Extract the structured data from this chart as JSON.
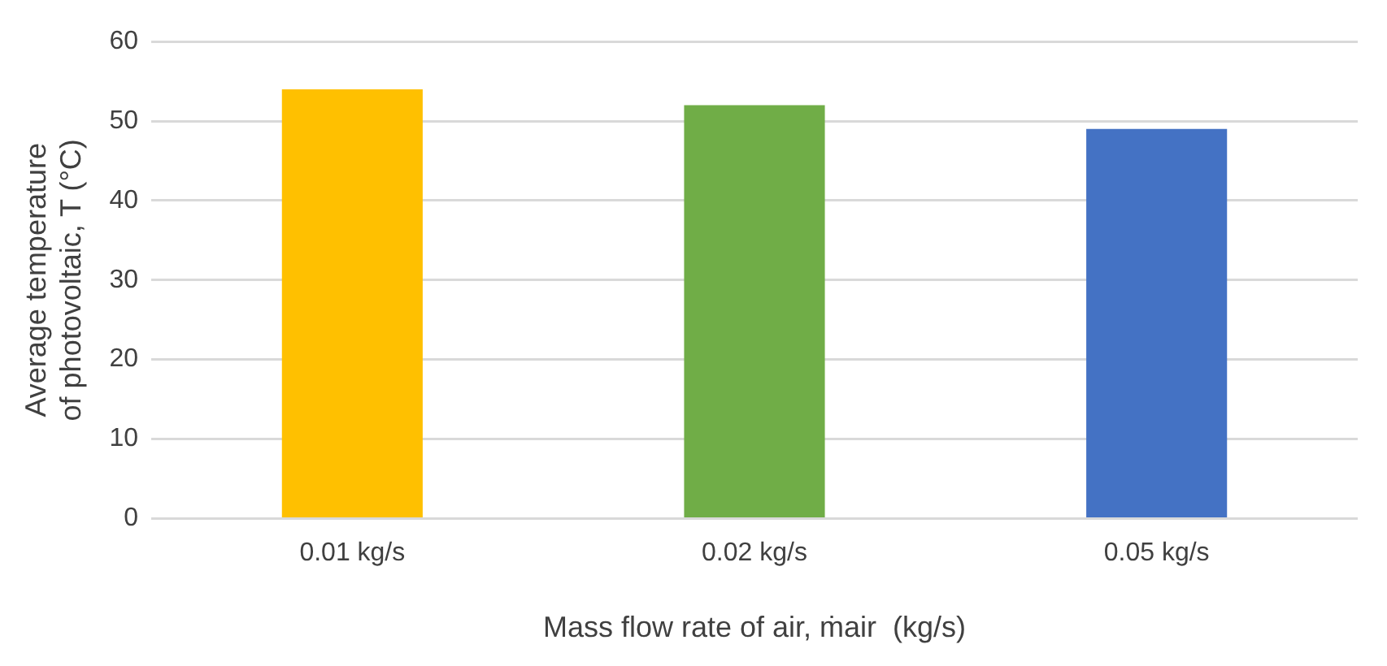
{
  "chart_data": {
    "type": "bar",
    "xlabel": "Mass flow rate of air, ṁair  (kg/s)",
    "ylabel": "Average temperature of photovoltaic, T (°C)",
    "categories": [
      "0.01 kg/s",
      "0.02 kg/s",
      "0.05 kg/s"
    ],
    "values": [
      54,
      52,
      49
    ],
    "colors": [
      "#ffc000",
      "#70ad47",
      "#4472c4"
    ],
    "ylim": [
      0,
      60
    ],
    "yticks": [
      0,
      10,
      20,
      30,
      40,
      50,
      60
    ],
    "grid": "y",
    "legend": false
  }
}
